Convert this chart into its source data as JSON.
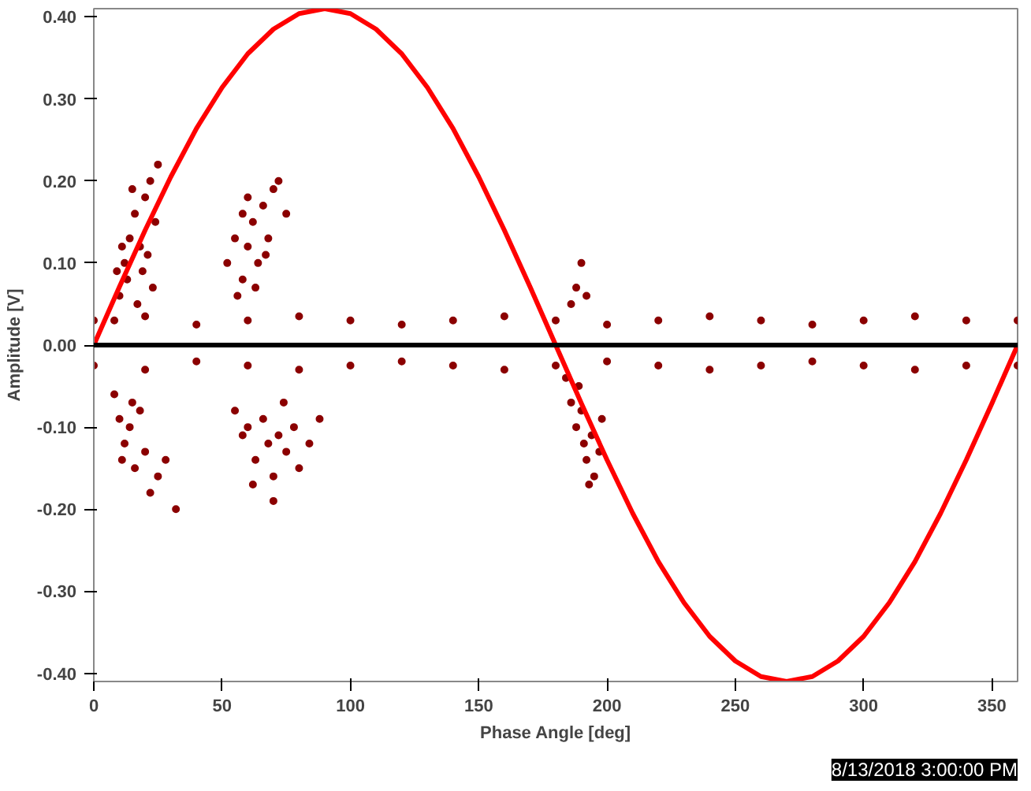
{
  "chart_data": {
    "type": "scatter",
    "xlabel": "Phase Angle [deg]",
    "ylabel": "Amplitude [V]",
    "xlim": [
      0,
      360
    ],
    "ylim": [
      -0.41,
      0.41
    ],
    "xticks": [
      0,
      50,
      100,
      150,
      200,
      250,
      300,
      350
    ],
    "yticks": [
      {
        "value": -0.4,
        "label": "-0.40"
      },
      {
        "value": -0.3,
        "label": "-0.30"
      },
      {
        "value": -0.2,
        "label": "-0.20"
      },
      {
        "value": -0.1,
        "label": "-0.10"
      },
      {
        "value": 0,
        "label": "0.00"
      },
      {
        "value": 0.1,
        "label": "0.10"
      },
      {
        "value": 0.2,
        "label": "0.20"
      },
      {
        "value": 0.3,
        "label": "0.30"
      },
      {
        "value": 0.4,
        "label": "0.40"
      }
    ],
    "grid": false,
    "marker": "circle",
    "ref_lines": [
      {
        "axis": "y",
        "value": 0,
        "color": "#000000"
      }
    ],
    "annotations": [
      "8/13/2018 3:00:00 PM"
    ],
    "series": [
      {
        "color": "#8b0000",
        "x": [
          0,
          20,
          40,
          60,
          80,
          100,
          120,
          140,
          160,
          180,
          200,
          220,
          240,
          260,
          280,
          300,
          320,
          340,
          360,
          0,
          20,
          40,
          60,
          80,
          100,
          120,
          140,
          160,
          180,
          200,
          220,
          240,
          260,
          280,
          300,
          320,
          340,
          360,
          8,
          10,
          12,
          14,
          16,
          18,
          20,
          22,
          24,
          13,
          17,
          19,
          21,
          23,
          15,
          11,
          25,
          9,
          52,
          55,
          58,
          60,
          62,
          64,
          66,
          68,
          70,
          72,
          75,
          58,
          56,
          63,
          67,
          60,
          8,
          10,
          12,
          14,
          16,
          18,
          20,
          22,
          25,
          28,
          32,
          15,
          11,
          55,
          58,
          60,
          63,
          66,
          68,
          70,
          72,
          75,
          78,
          80,
          84,
          88,
          70,
          62,
          74,
          184,
          186,
          188,
          190,
          191,
          192,
          194,
          195,
          197,
          198,
          193,
          189,
          186,
          188,
          190,
          192
        ],
        "values": [
          0.03,
          0.035,
          0.025,
          0.03,
          0.035,
          0.03,
          0.025,
          0.03,
          0.035,
          0.03,
          0.025,
          0.03,
          0.035,
          0.03,
          0.025,
          0.03,
          0.035,
          0.03,
          0.03,
          -0.025,
          -0.03,
          -0.02,
          -0.025,
          -0.03,
          -0.025,
          -0.02,
          -0.025,
          -0.03,
          -0.025,
          -0.02,
          -0.025,
          -0.03,
          -0.025,
          -0.02,
          -0.025,
          -0.03,
          -0.025,
          -0.025,
          0.03,
          0.06,
          0.1,
          0.13,
          0.16,
          0.12,
          0.18,
          0.2,
          0.15,
          0.08,
          0.05,
          0.09,
          0.11,
          0.07,
          0.19,
          0.12,
          0.22,
          0.09,
          0.1,
          0.13,
          0.08,
          0.12,
          0.15,
          0.1,
          0.17,
          0.13,
          0.19,
          0.2,
          0.16,
          0.16,
          0.06,
          0.07,
          0.11,
          0.18,
          -0.06,
          -0.09,
          -0.12,
          -0.1,
          -0.15,
          -0.08,
          -0.13,
          -0.18,
          -0.16,
          -0.14,
          -0.2,
          -0.07,
          -0.14,
          -0.08,
          -0.11,
          -0.1,
          -0.14,
          -0.09,
          -0.12,
          -0.16,
          -0.11,
          -0.13,
          -0.1,
          -0.15,
          -0.12,
          -0.09,
          -0.19,
          -0.17,
          -0.07,
          -0.04,
          -0.07,
          -0.1,
          -0.08,
          -0.12,
          -0.14,
          -0.11,
          -0.16,
          -0.13,
          -0.09,
          -0.17,
          -0.05,
          0.05,
          0.07,
          0.1,
          0.06
        ]
      },
      {
        "type": "line",
        "color": "#ff0000",
        "marker": "none",
        "x": [
          0,
          10,
          20,
          30,
          40,
          50,
          60,
          70,
          80,
          90,
          100,
          110,
          120,
          130,
          140,
          150,
          160,
          170,
          180,
          190,
          200,
          210,
          220,
          230,
          240,
          250,
          260,
          270,
          280,
          290,
          300,
          310,
          320,
          330,
          340,
          350,
          360
        ],
        "values": [
          0,
          0.071,
          0.14,
          0.205,
          0.264,
          0.314,
          0.355,
          0.385,
          0.404,
          0.41,
          0.404,
          0.385,
          0.355,
          0.314,
          0.264,
          0.205,
          0.14,
          0.071,
          0,
          -0.071,
          -0.14,
          -0.205,
          -0.264,
          -0.314,
          -0.355,
          -0.385,
          -0.404,
          -0.41,
          -0.404,
          -0.385,
          -0.355,
          -0.314,
          -0.264,
          -0.205,
          -0.14,
          -0.071,
          0
        ]
      }
    ]
  }
}
